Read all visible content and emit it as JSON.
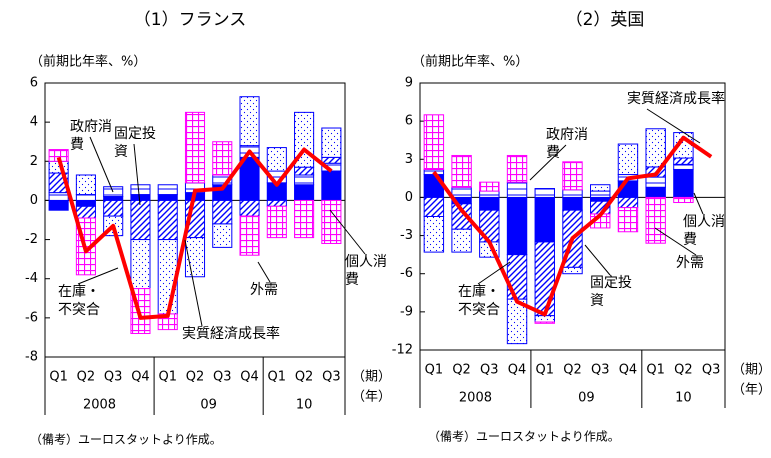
{
  "chart_data": [
    {
      "type": "bar",
      "title": "（1）フランス",
      "y_label": "（前期比年率、%）",
      "stacked": true,
      "categories": [
        "Q1",
        "Q2",
        "Q3",
        "Q4",
        "Q1",
        "Q2",
        "Q3",
        "Q4",
        "Q1",
        "Q2",
        "Q3"
      ],
      "year_labels": [
        "2008",
        "09",
        "10"
      ],
      "x_unit_labels": [
        "（期）",
        "（年）"
      ],
      "ylim": [
        -8,
        6
      ],
      "yticks": [
        -8,
        -6,
        -4,
        -2,
        0,
        2,
        4,
        6
      ],
      "series": [
        {
          "name": "個人消費",
          "color": "#0000ff",
          "pattern": "solid",
          "values": [
            -0.5,
            -0.3,
            0.2,
            0.3,
            0.3,
            0.4,
            0.8,
            2.2,
            0.9,
            0.8,
            1.5
          ]
        },
        {
          "name": "政府消費",
          "color": "#0000ff",
          "pattern": "hline",
          "values": [
            0.4,
            0.3,
            0.5,
            0.5,
            0.5,
            0.5,
            0.5,
            0.6,
            0.6,
            0.5,
            0.4
          ]
        },
        {
          "name": "固定投資",
          "color": "#0000ff",
          "pattern": "diag",
          "values": [
            1.0,
            -0.6,
            -0.8,
            -2.0,
            -2.0,
            -1.9,
            -1.2,
            -0.8,
            -0.3,
            0.4,
            0.3
          ]
        },
        {
          "name": "在庫・不突合",
          "color": "#0000ff",
          "pattern": "dots",
          "values": [
            0.6,
            1.0,
            -1.0,
            -2.5,
            -3.8,
            -2.0,
            -1.2,
            2.5,
            1.2,
            2.8,
            1.5
          ]
        },
        {
          "name": "外需",
          "color": "#ff00ff",
          "pattern": "grid",
          "values": [
            0.6,
            -2.9,
            0,
            -2.3,
            -0.8,
            3.6,
            1.7,
            -2.0,
            -1.6,
            -1.9,
            -2.2
          ]
        },
        {
          "name": "実質経済成長率",
          "type": "line",
          "color": "#ff0000",
          "values": [
            2.2,
            -2.6,
            -1.3,
            -6.0,
            -5.9,
            0.5,
            0.6,
            2.5,
            0.8,
            2.6,
            1.5
          ]
        }
      ],
      "note": "（備考）ユーロスタットより作成。"
    },
    {
      "type": "bar",
      "title": "（2）英国",
      "y_label": "（前期比年率、%）",
      "stacked": true,
      "categories": [
        "Q1",
        "Q2",
        "Q3",
        "Q4",
        "Q1",
        "Q2",
        "Q3",
        "Q4",
        "Q1",
        "Q2",
        "Q3"
      ],
      "year_labels": [
        "2008",
        "09",
        "10"
      ],
      "x_unit_labels": [
        "（期）",
        "（年）"
      ],
      "ylim": [
        -12,
        9
      ],
      "yticks": [
        -12,
        -9,
        -6,
        -3,
        0,
        3,
        6,
        9
      ],
      "series": [
        {
          "name": "個人消費",
          "color": "#0000ff",
          "pattern": "solid",
          "values": [
            1.8,
            -0.5,
            -1.0,
            -4.5,
            -3.5,
            -1.0,
            -0.3,
            1.3,
            0.8,
            2.2,
            null
          ]
        },
        {
          "name": "政府消費",
          "color": "#0000ff",
          "pattern": "hline",
          "values": [
            0.4,
            0.8,
            0.5,
            1.2,
            0.7,
            0.6,
            0.5,
            0.5,
            0.8,
            0.4,
            null
          ]
        },
        {
          "name": "固定投資",
          "color": "#0000ff",
          "pattern": "diag",
          "values": [
            -1.5,
            -2.0,
            -2.5,
            -3.5,
            -5.8,
            -4.5,
            -1.0,
            -0.8,
            0.8,
            0.5,
            null
          ]
        },
        {
          "name": "在庫・不突合",
          "color": "#0000ff",
          "pattern": "dots",
          "values": [
            -2.8,
            -1.8,
            -1.2,
            -3.5,
            -0.5,
            -0.5,
            0.5,
            2.4,
            3.0,
            2.0,
            null
          ]
        },
        {
          "name": "外需",
          "color": "#ff00ff",
          "pattern": "grid",
          "values": [
            4.3,
            2.5,
            0.7,
            2.1,
            -0.1,
            2.2,
            -1.1,
            -1.9,
            -3.6,
            -0.4,
            null
          ]
        },
        {
          "name": "実質経済成長率",
          "type": "line",
          "color": "#ff0000",
          "values": [
            2.0,
            -1.0,
            -3.5,
            -8.2,
            -9.2,
            -3.2,
            -1.4,
            1.5,
            1.8,
            4.7,
            3.2
          ]
        }
      ],
      "note": "（備考）ユーロスタットより作成。"
    }
  ]
}
